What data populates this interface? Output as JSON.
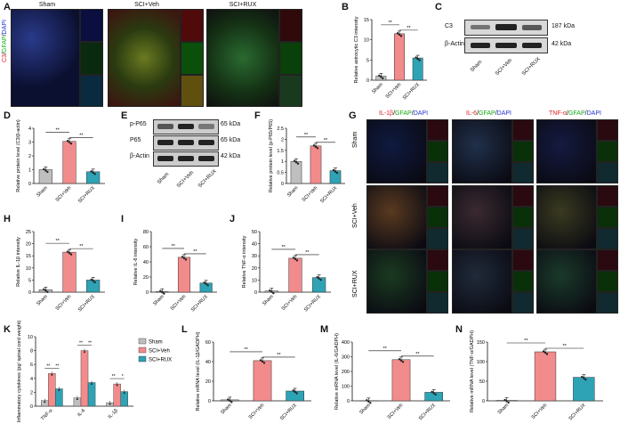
{
  "colors": {
    "sham": "#bfbfbf",
    "veh": "#f28b8b",
    "rux": "#2ea3b5"
  },
  "panels": {
    "A": {
      "letter": "A",
      "conditions": [
        "Sham",
        "SCI+Veh",
        "SCI+RUX"
      ],
      "stain": {
        "c3": "C3",
        "slash1": "/",
        "gfap": "GFAP",
        "slash2": "/",
        "dapi": "DAPI"
      }
    },
    "B": {
      "letter": "B"
    },
    "C": {
      "letter": "C",
      "bands": [
        "C3",
        "β-Actin"
      ],
      "kda": [
        "187 kDa",
        "42 kDa"
      ],
      "lanes": [
        "Sham",
        "SCI+Veh",
        "SCI+RUX"
      ]
    },
    "D": {
      "letter": "D"
    },
    "E": {
      "letter": "E",
      "bands": [
        "p-P65",
        "P65",
        "β-Actin"
      ],
      "kda": [
        "65 kDa",
        "65 kDa",
        "42 kDa"
      ],
      "lanes": [
        "Sham",
        "SCI+Veh",
        "SCI+RUX"
      ]
    },
    "F": {
      "letter": "F"
    },
    "G": {
      "letter": "G",
      "rows": [
        "Sham",
        "SCI+Veh",
        "SCI+RUX"
      ],
      "stains": [
        {
          "a": "IL-1β",
          "s1": "/",
          "g": "GFAP",
          "s2": "/",
          "d": "DAPI"
        },
        {
          "a": "IL-6",
          "s1": "/",
          "g": "GFAP",
          "s2": "/",
          "d": "DAPI"
        },
        {
          "a": "TNF-α",
          "s1": "/",
          "g": "GFAP",
          "s2": "/",
          "d": "DAPI"
        }
      ]
    },
    "H": {
      "letter": "H"
    },
    "I": {
      "letter": "I"
    },
    "J": {
      "letter": "J"
    },
    "K": {
      "letter": "K"
    },
    "L": {
      "letter": "L"
    },
    "M": {
      "letter": "M"
    },
    "N": {
      "letter": "N"
    }
  },
  "chart_data": [
    {
      "id": "B",
      "type": "bar",
      "ylabel": "Relative astrocytic C3 intensity",
      "categories": [
        "Sham",
        "SCI+Veh",
        "SCI+RUX"
      ],
      "values": [
        1.0,
        11.5,
        5.5
      ],
      "ylim": [
        0,
        15
      ],
      "yticks": [
        0,
        5,
        10,
        15
      ],
      "sig": [
        "**",
        "**"
      ]
    },
    {
      "id": "D",
      "type": "bar",
      "ylabel": "Relative protein level (C3/β-actin)",
      "categories": [
        "Sham",
        "SCI+Veh",
        "SCI+RUX"
      ],
      "values": [
        1.0,
        3.05,
        0.85
      ],
      "ylim": [
        0,
        4
      ],
      "yticks": [
        0,
        1,
        2,
        3,
        4
      ],
      "sig": [
        "**",
        "**"
      ]
    },
    {
      "id": "F",
      "type": "bar",
      "ylabel": "Relative protein level (p-P65/P65)",
      "categories": [
        "Sham",
        "SCI+Veh",
        "SCI+RUX"
      ],
      "values": [
        1.0,
        1.7,
        0.58
      ],
      "ylim": [
        0,
        2.5
      ],
      "yticks": [
        0.0,
        0.5,
        1.0,
        1.5,
        2.0,
        2.5
      ],
      "sig": [
        "**",
        "**"
      ]
    },
    {
      "id": "H",
      "type": "bar",
      "ylabel": "Relative IL-1β intensity",
      "categories": [
        "Sham",
        "SCI+Veh",
        "SCI+RUX"
      ],
      "values": [
        1.0,
        16.5,
        5.0
      ],
      "ylim": [
        0,
        25
      ],
      "yticks": [
        0,
        5,
        10,
        15,
        20,
        25
      ],
      "sig": [
        "**",
        "**"
      ]
    },
    {
      "id": "I",
      "type": "bar",
      "ylabel": "Relative IL-6 intensity",
      "categories": [
        "Sham",
        "SCI+Veh",
        "SCI+RUX"
      ],
      "values": [
        1.0,
        46,
        12
      ],
      "ylim": [
        0,
        80
      ],
      "yticks": [
        0,
        20,
        40,
        60,
        80
      ],
      "sig": [
        "**",
        "**"
      ]
    },
    {
      "id": "J",
      "type": "bar",
      "ylabel": "Relative TNF-α intensity",
      "categories": [
        "Sham",
        "SCI+Veh",
        "SCI+RUX"
      ],
      "values": [
        1.0,
        28,
        12
      ],
      "ylim": [
        0,
        50
      ],
      "yticks": [
        0,
        10,
        20,
        30,
        40,
        50
      ],
      "sig": [
        "**",
        "**"
      ]
    },
    {
      "id": "K",
      "type": "bar",
      "ylabel": "Inflammatory cytokines (pg/ spinal cord weight)",
      "categories": [
        "TNF-α",
        "IL-6",
        "IL-1β"
      ],
      "series": [
        {
          "name": "Sham",
          "values": [
            0.8,
            1.2,
            0.5
          ]
        },
        {
          "name": "SCI+Veh",
          "values": [
            4.7,
            8.0,
            3.2
          ]
        },
        {
          "name": "SCI+RUX",
          "values": [
            2.5,
            3.4,
            2.1
          ]
        }
      ],
      "ylim": [
        0,
        10
      ],
      "yticks": [
        0,
        2,
        4,
        6,
        8,
        10
      ],
      "sig": [
        "**",
        "**",
        "**",
        "**",
        "**",
        "*"
      ]
    },
    {
      "id": "L",
      "type": "bar",
      "ylabel": "Relative mRNA level (IL-1β/GADPH)",
      "categories": [
        "Sham",
        "SCI+Veh",
        "SCI+RUX"
      ],
      "values": [
        1.0,
        41,
        10
      ],
      "ylim": [
        0,
        60
      ],
      "yticks": [
        0,
        20,
        40,
        60
      ],
      "sig": [
        "**",
        "**"
      ]
    },
    {
      "id": "M",
      "type": "bar",
      "ylabel": "Relative mRNA level (IL-6/GADPH)",
      "categories": [
        "Sham",
        "SCI+Veh",
        "SCI+RUX"
      ],
      "values": [
        1.0,
        280,
        58
      ],
      "ylim": [
        0,
        400
      ],
      "yticks": [
        0,
        100,
        200,
        300,
        400
      ],
      "sig": [
        "**",
        "**"
      ]
    },
    {
      "id": "N",
      "type": "bar",
      "ylabel": "Relative mRNA level (TNF-α/GADPH)",
      "categories": [
        "Sham",
        "SCI+Veh",
        "SCI+RUX"
      ],
      "values": [
        1.0,
        125,
        60
      ],
      "ylim": [
        0,
        150
      ],
      "yticks": [
        0,
        50,
        100,
        150
      ],
      "sig": [
        "**",
        "**"
      ]
    }
  ]
}
